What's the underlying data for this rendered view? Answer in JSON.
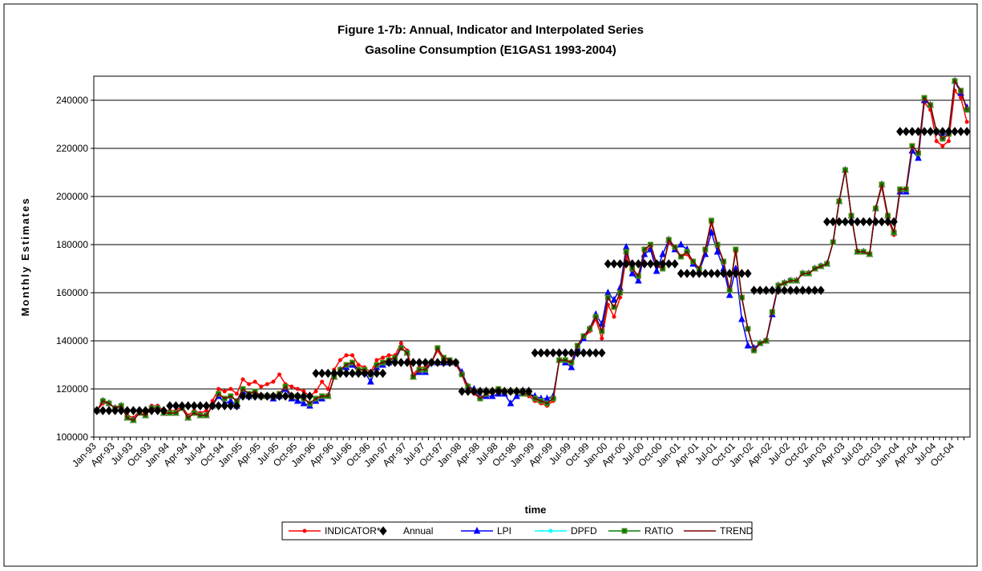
{
  "chart_data": {
    "type": "line",
    "title": "Figure 1-7b: Annual, Indicator and Interpolated Series",
    "subtitle": "Gasoline Consumption (E1GAS1 1993-2004)",
    "x_label": "time",
    "y_label": "Monthly Estimates",
    "ylim": [
      100000,
      250000
    ],
    "yticks": [
      100000,
      120000,
      140000,
      160000,
      180000,
      200000,
      220000,
      240000
    ],
    "grid": true,
    "legend": "bottom",
    "categories": [
      "Jan-93",
      null,
      null,
      "Apr-93",
      null,
      null,
      "Jul-93",
      null,
      null,
      "Oct-93",
      null,
      null,
      "Jan-94",
      null,
      null,
      "Apr-94",
      null,
      null,
      "Jul-94",
      null,
      null,
      "Oct-94",
      null,
      null,
      "Jan-95",
      null,
      null,
      "Apr-95",
      null,
      null,
      "Jul-95",
      null,
      null,
      "Oct-95",
      null,
      null,
      "Jan-96",
      null,
      null,
      "Apr-96",
      null,
      null,
      "Jul-96",
      null,
      null,
      "Oct-96",
      null,
      null,
      "Jan-97",
      null,
      null,
      "Apr-97",
      null,
      null,
      "Jul-97",
      null,
      null,
      "Oct-97",
      null,
      null,
      "Jan-98",
      null,
      null,
      "Apr-98",
      null,
      null,
      "Jul-98",
      null,
      null,
      "Oct-98",
      null,
      null,
      "Jan-99",
      null,
      null,
      "Apr-99",
      null,
      null,
      "Jul-99",
      null,
      null,
      "Oct-99",
      null,
      null,
      "Jan-00",
      null,
      null,
      "Apr-00",
      null,
      null,
      "Jul-00",
      null,
      null,
      "Oct-00",
      null,
      null,
      "Jan-01",
      null,
      null,
      "Apr-01",
      null,
      null,
      "Jul-01",
      null,
      null,
      "Oct-01",
      null,
      null,
      "Jan-02",
      null,
      null,
      "Apr-02",
      null,
      null,
      "Jul-02",
      null,
      null,
      "Oct-02",
      null,
      null,
      "Jan-03",
      null,
      null,
      "Apr-03",
      null,
      null,
      "Jul-03",
      null,
      null,
      "Oct-03",
      null,
      null,
      "Jan-04",
      null,
      null,
      "Apr-04",
      null,
      null,
      "Jul-04",
      null,
      null,
      "Oct-04",
      null,
      null
    ],
    "series": [
      {
        "name": "INDICATOR*",
        "color": "#ff0000",
        "marker": "dot",
        "values": [
          111000,
          114000,
          114000,
          112000,
          113000,
          109000,
          108000,
          111000,
          110000,
          113000,
          113000,
          111000,
          111000,
          111000,
          113000,
          109000,
          111000,
          110000,
          111000,
          115000,
          120000,
          119000,
          120000,
          118000,
          124000,
          122000,
          123000,
          121000,
          122000,
          123000,
          126000,
          122000,
          121000,
          120000,
          119000,
          117000,
          119000,
          123000,
          120000,
          128000,
          132000,
          134000,
          134000,
          130000,
          129000,
          127000,
          132000,
          133000,
          134000,
          134000,
          139000,
          136000,
          126000,
          129000,
          129000,
          131000,
          136000,
          132000,
          131000,
          130000,
          126000,
          119000,
          118000,
          116000,
          117000,
          119000,
          120000,
          119000,
          119000,
          119000,
          118000,
          117000,
          115000,
          114000,
          113000,
          115000,
          132000,
          131000,
          131000,
          138000,
          141000,
          144000,
          149000,
          141000,
          155000,
          150000,
          158000,
          175000,
          169000,
          166000,
          177000,
          179000,
          171000,
          170000,
          181000,
          178000,
          175000,
          176000,
          172000,
          170000,
          177000,
          189000,
          179000,
          173000,
          161000,
          177000,
          158000,
          145000,
          136000,
          139000,
          140000,
          152000,
          163000,
          164000,
          165000,
          165000,
          168000,
          168000,
          170000,
          171000,
          172000,
          181000,
          198000,
          211000,
          192000,
          177000,
          177000,
          176000,
          195000,
          204000,
          191000,
          184000,
          202000,
          202000,
          220000,
          216000,
          239000,
          236000,
          223000,
          221000,
          223000,
          244000,
          241000,
          231000
        ]
      },
      {
        "name": "Annual",
        "color": "#000000",
        "marker": "diamond",
        "line": false,
        "values": [
          111000,
          111000,
          111000,
          111000,
          111000,
          111000,
          111000,
          111000,
          111000,
          111000,
          111000,
          111000,
          113000,
          113000,
          113000,
          113000,
          113000,
          113000,
          113000,
          113000,
          113000,
          113000,
          113000,
          113000,
          117000,
          117000,
          117000,
          117000,
          117000,
          117000,
          117000,
          117000,
          117000,
          117000,
          117000,
          117000,
          126500,
          126500,
          126500,
          126500,
          126500,
          126500,
          126500,
          126500,
          126500,
          126500,
          126500,
          126500,
          131000,
          131000,
          131000,
          131000,
          131000,
          131000,
          131000,
          131000,
          131000,
          131000,
          131000,
          131000,
          119000,
          119000,
          119000,
          119000,
          119000,
          119000,
          119000,
          119000,
          119000,
          119000,
          119000,
          119000,
          135000,
          135000,
          135000,
          135000,
          135000,
          135000,
          135000,
          135000,
          135000,
          135000,
          135000,
          135000,
          172000,
          172000,
          172000,
          172000,
          172000,
          172000,
          172000,
          172000,
          172000,
          172000,
          172000,
          172000,
          168000,
          168000,
          168000,
          168000,
          168000,
          168000,
          168000,
          168000,
          168000,
          168000,
          168000,
          168000,
          161000,
          161000,
          161000,
          161000,
          161000,
          161000,
          161000,
          161000,
          161000,
          161000,
          161000,
          161000,
          189500,
          189500,
          189500,
          189500,
          189500,
          189500,
          189500,
          189500,
          189500,
          189500,
          189500,
          189500,
          227000,
          227000,
          227000,
          227000,
          227000,
          227000,
          227000,
          227000,
          227000,
          227000,
          227000,
          227000
        ]
      },
      {
        "name": "LPI",
        "color": "#0000ff",
        "marker": "triangle",
        "values": [
          111000,
          115000,
          114000,
          112000,
          113000,
          108000,
          107000,
          110000,
          109000,
          112000,
          112000,
          110000,
          110000,
          110000,
          112000,
          108000,
          110000,
          109000,
          109000,
          113000,
          117000,
          114000,
          115000,
          113000,
          119000,
          117000,
          118000,
          117000,
          117000,
          116000,
          117000,
          120000,
          116000,
          115000,
          114000,
          113000,
          115000,
          116000,
          117000,
          125000,
          128000,
          129000,
          130000,
          127000,
          127000,
          123000,
          129000,
          130000,
          131000,
          132000,
          137000,
          135000,
          125000,
          127000,
          127000,
          131000,
          131000,
          131000,
          131000,
          131000,
          127000,
          121000,
          120000,
          117000,
          117000,
          117000,
          118000,
          118000,
          114000,
          117000,
          118000,
          118000,
          117000,
          116000,
          116000,
          117000,
          132000,
          131000,
          129000,
          137000,
          141000,
          145000,
          151000,
          147000,
          160000,
          157000,
          162000,
          179000,
          168000,
          165000,
          176000,
          178000,
          169000,
          176000,
          182000,
          178000,
          180000,
          178000,
          172000,
          169000,
          176000,
          185000,
          177000,
          170000,
          159000,
          170000,
          149000,
          138000,
          137000,
          139000,
          140000,
          151000,
          163000,
          164000,
          165000,
          165000,
          168000,
          168000,
          170000,
          171000,
          172000,
          181000,
          198000,
          211000,
          192000,
          177000,
          177000,
          176000,
          195000,
          205000,
          192000,
          185000,
          202000,
          202000,
          219000,
          216000,
          240000,
          238000,
          227000,
          225000,
          227000,
          248000,
          243000,
          237000
        ]
      },
      {
        "name": "DPFD",
        "color": "#00ffff",
        "marker": "dot",
        "values": [
          111000,
          115000,
          114000,
          112000,
          113000,
          108000,
          107000,
          110000,
          109000,
          112000,
          112000,
          110000,
          110000,
          110000,
          112000,
          108000,
          110000,
          109000,
          109000,
          113000,
          118000,
          116000,
          117000,
          115000,
          120000,
          118000,
          119000,
          117000,
          117000,
          117000,
          118000,
          121000,
          117000,
          117000,
          116000,
          114000,
          116000,
          117000,
          117000,
          125000,
          128000,
          130000,
          131000,
          128000,
          128000,
          126000,
          130000,
          131000,
          132000,
          133000,
          137000,
          135000,
          125000,
          128000,
          128000,
          131000,
          137000,
          133000,
          132000,
          131000,
          126000,
          121000,
          119000,
          116000,
          118000,
          119000,
          120000,
          119000,
          119000,
          119000,
          118000,
          118000,
          116000,
          115000,
          114000,
          116000,
          132000,
          132000,
          131000,
          138000,
          142000,
          145000,
          150000,
          144000,
          158000,
          154000,
          160000,
          177000,
          170000,
          167000,
          178000,
          180000,
          172000,
          170000,
          182000,
          179000,
          175000,
          177000,
          173000,
          170000,
          178000,
          190000,
          180000,
          173000,
          161000,
          178000,
          158000,
          145000,
          136000,
          139000,
          140000,
          152000,
          163000,
          164000,
          165000,
          165000,
          168000,
          168000,
          170000,
          171000,
          172000,
          181000,
          198000,
          211000,
          192000,
          177000,
          177000,
          176000,
          195000,
          205000,
          192000,
          185000,
          203000,
          203000,
          221000,
          218000,
          241000,
          238000,
          227000,
          224000,
          226000,
          248000,
          244000,
          236000
        ]
      },
      {
        "name": "RATIO",
        "color": "#008000",
        "marker": "square",
        "values": [
          111000,
          115000,
          114000,
          112000,
          113000,
          108000,
          107000,
          110000,
          109000,
          112000,
          112000,
          110000,
          110000,
          110000,
          112000,
          108000,
          110000,
          109000,
          109000,
          113000,
          118000,
          116000,
          117000,
          115000,
          120000,
          118000,
          119000,
          117000,
          117000,
          117000,
          118000,
          121000,
          117000,
          117000,
          116000,
          114000,
          116000,
          117000,
          117000,
          125000,
          128000,
          130000,
          131000,
          128000,
          128000,
          126000,
          130000,
          131000,
          132000,
          133000,
          137000,
          135000,
          125000,
          128000,
          128000,
          131000,
          137000,
          133000,
          132000,
          131000,
          126000,
          121000,
          119000,
          116000,
          118000,
          119000,
          120000,
          119000,
          119000,
          119000,
          118000,
          118000,
          116000,
          115000,
          114000,
          116000,
          132000,
          132000,
          131000,
          138000,
          142000,
          145000,
          150000,
          144000,
          158000,
          154000,
          160000,
          177000,
          170000,
          167000,
          178000,
          180000,
          172000,
          170000,
          182000,
          179000,
          175000,
          177000,
          173000,
          170000,
          178000,
          190000,
          180000,
          173000,
          161000,
          178000,
          158000,
          145000,
          136000,
          139000,
          140000,
          152000,
          163000,
          164000,
          165000,
          165000,
          168000,
          168000,
          170000,
          171000,
          172000,
          181000,
          198000,
          211000,
          192000,
          177000,
          177000,
          176000,
          195000,
          205000,
          192000,
          185000,
          203000,
          203000,
          221000,
          218000,
          241000,
          238000,
          227000,
          224000,
          226000,
          248000,
          244000,
          236000
        ]
      },
      {
        "name": "TREND",
        "color": "#800000",
        "values": [
          111000,
          115000,
          114000,
          112000,
          113000,
          108000,
          107000,
          110000,
          109000,
          112000,
          112000,
          110000,
          110000,
          110000,
          112000,
          108000,
          110000,
          109000,
          109000,
          113000,
          118000,
          116000,
          117000,
          115000,
          120000,
          118000,
          119000,
          117000,
          117000,
          117000,
          118000,
          121000,
          117000,
          117000,
          116000,
          114000,
          116000,
          117000,
          117000,
          125000,
          128000,
          130000,
          131000,
          128000,
          128000,
          126000,
          130000,
          131000,
          132000,
          133000,
          137000,
          135000,
          125000,
          128000,
          128000,
          131000,
          137000,
          133000,
          132000,
          131000,
          126000,
          121000,
          119000,
          116000,
          118000,
          119000,
          120000,
          119000,
          119000,
          119000,
          118000,
          118000,
          116000,
          115000,
          114000,
          116000,
          132000,
          132000,
          131000,
          138000,
          142000,
          145000,
          150000,
          144000,
          158000,
          154000,
          160000,
          177000,
          170000,
          167000,
          178000,
          180000,
          172000,
          170000,
          182000,
          179000,
          175000,
          177000,
          173000,
          170000,
          178000,
          190000,
          180000,
          173000,
          161000,
          178000,
          158000,
          145000,
          136000,
          139000,
          140000,
          152000,
          163000,
          164000,
          165000,
          165000,
          168000,
          168000,
          170000,
          171000,
          172000,
          181000,
          198000,
          211000,
          192000,
          177000,
          177000,
          176000,
          195000,
          205000,
          192000,
          185000,
          203000,
          203000,
          221000,
          218000,
          241000,
          238000,
          227000,
          224000,
          226000,
          248000,
          244000,
          236000
        ]
      }
    ]
  }
}
